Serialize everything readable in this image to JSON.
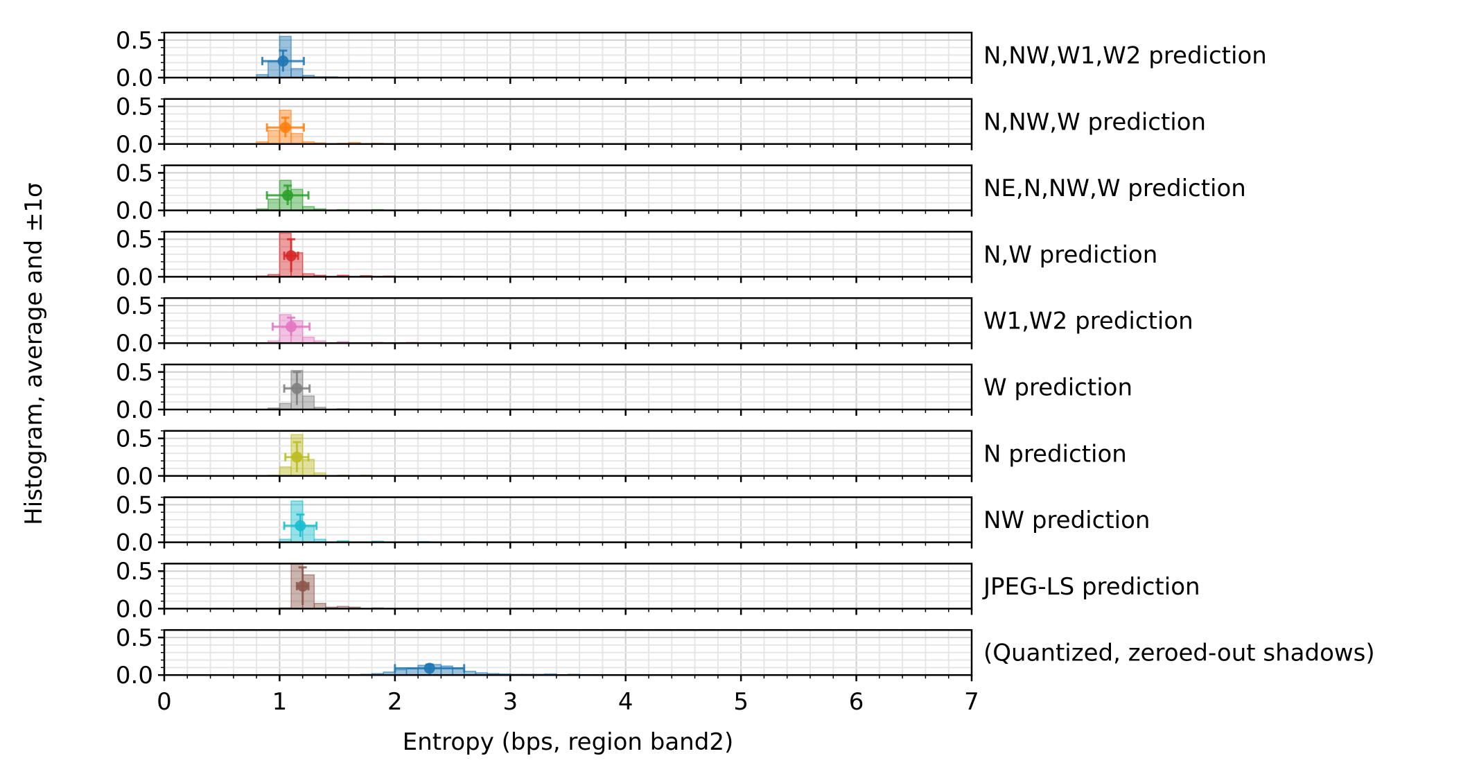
{
  "chart_data": {
    "type": "histogram",
    "xlabel": "Entropy (bps, region band2)",
    "ylabel": "Histogram, average and ±1σ",
    "xlim": [
      0,
      7
    ],
    "ylim": [
      0,
      0.6
    ],
    "x_ticks": [
      "0",
      "1",
      "2",
      "3",
      "4",
      "5",
      "6",
      "7"
    ],
    "y_ticks": [
      "0.0",
      "0.5"
    ],
    "grid": true,
    "bin_width": 0.1,
    "panels": [
      {
        "label": "N,NW,W1,W2 prediction",
        "color": "#1f77b4",
        "mean": 1.03,
        "std": 0.18,
        "marker_y": 0.22,
        "error_y": 0.14,
        "bins": [
          [
            0.8,
            0.04
          ],
          [
            0.9,
            0.22
          ],
          [
            1.0,
            0.55
          ],
          [
            1.1,
            0.12
          ],
          [
            1.2,
            0.03
          ],
          [
            1.3,
            0.01
          ],
          [
            1.4,
            0.01
          ],
          [
            1.6,
            0.005
          ]
        ]
      },
      {
        "label": "N,NW,W prediction",
        "color": "#ff7f0e",
        "mean": 1.05,
        "std": 0.16,
        "marker_y": 0.22,
        "error_y": 0.13,
        "bins": [
          [
            0.8,
            0.03
          ],
          [
            0.9,
            0.18
          ],
          [
            1.0,
            0.45
          ],
          [
            1.1,
            0.14
          ],
          [
            1.2,
            0.03
          ],
          [
            1.3,
            0.015
          ],
          [
            1.5,
            0.01
          ],
          [
            1.6,
            0.02
          ],
          [
            1.8,
            0.01
          ],
          [
            2.0,
            0.005
          ]
        ]
      },
      {
        "label": "NE,N,NW,W prediction",
        "color": "#2ca02c",
        "mean": 1.07,
        "std": 0.18,
        "marker_y": 0.2,
        "error_y": 0.13,
        "bins": [
          [
            0.8,
            0.02
          ],
          [
            0.9,
            0.15
          ],
          [
            1.0,
            0.4
          ],
          [
            1.1,
            0.28
          ],
          [
            1.2,
            0.05
          ],
          [
            1.3,
            0.02
          ],
          [
            1.5,
            0.01
          ],
          [
            1.8,
            0.01
          ],
          [
            2.2,
            0.005
          ],
          [
            2.8,
            0.005
          ]
        ]
      },
      {
        "label": "N,W prediction",
        "color": "#d62728",
        "mean": 1.1,
        "std": 0.06,
        "marker_y": 0.28,
        "error_y": 0.22,
        "bins": [
          [
            0.8,
            0.01
          ],
          [
            0.9,
            0.03
          ],
          [
            1.0,
            0.58
          ],
          [
            1.1,
            0.32
          ],
          [
            1.2,
            0.04
          ],
          [
            1.3,
            0.02
          ],
          [
            1.5,
            0.02
          ],
          [
            1.7,
            0.015
          ],
          [
            1.9,
            0.01
          ],
          [
            2.4,
            0.005
          ]
        ]
      },
      {
        "label": "W1,W2 prediction",
        "color": "#e377c2",
        "mean": 1.1,
        "std": 0.16,
        "marker_y": 0.22,
        "error_y": 0.12,
        "bins": [
          [
            0.9,
            0.03
          ],
          [
            1.0,
            0.38
          ],
          [
            1.1,
            0.3
          ],
          [
            1.2,
            0.08
          ],
          [
            1.3,
            0.03
          ],
          [
            1.5,
            0.02
          ],
          [
            1.8,
            0.01
          ],
          [
            2.1,
            0.01
          ],
          [
            2.4,
            0.005
          ]
        ]
      },
      {
        "label": "W prediction",
        "color": "#7f7f7f",
        "mean": 1.15,
        "std": 0.11,
        "marker_y": 0.28,
        "error_y": 0.22,
        "bins": [
          [
            0.9,
            0.02
          ],
          [
            1.0,
            0.08
          ],
          [
            1.1,
            0.52
          ],
          [
            1.2,
            0.18
          ],
          [
            1.3,
            0.03
          ],
          [
            1.5,
            0.01
          ]
        ]
      },
      {
        "label": "N prediction",
        "color": "#bcbd22",
        "mean": 1.15,
        "std": 0.1,
        "marker_y": 0.25,
        "error_y": 0.2,
        "bins": [
          [
            0.9,
            0.01
          ],
          [
            1.0,
            0.12
          ],
          [
            1.1,
            0.55
          ],
          [
            1.2,
            0.22
          ],
          [
            1.3,
            0.04
          ],
          [
            1.5,
            0.01
          ],
          [
            1.7,
            0.01
          ]
        ]
      },
      {
        "label": "NW prediction",
        "color": "#17becf",
        "mean": 1.18,
        "std": 0.14,
        "marker_y": 0.22,
        "error_y": 0.15,
        "bins": [
          [
            1.0,
            0.04
          ],
          [
            1.1,
            0.55
          ],
          [
            1.2,
            0.22
          ],
          [
            1.3,
            0.04
          ],
          [
            1.5,
            0.02
          ],
          [
            1.8,
            0.015
          ],
          [
            2.2,
            0.01
          ],
          [
            2.6,
            0.005
          ]
        ]
      },
      {
        "label": "JPEG-LS prediction",
        "color": "#8c564b",
        "mean": 1.2,
        "std": 0.05,
        "marker_y": 0.3,
        "error_y": 0.25,
        "bins": [
          [
            1.0,
            0.01
          ],
          [
            1.1,
            0.6
          ],
          [
            1.2,
            0.45
          ],
          [
            1.3,
            0.07
          ],
          [
            1.4,
            0.02
          ],
          [
            1.5,
            0.03
          ],
          [
            1.6,
            0.02
          ],
          [
            1.8,
            0.01
          ]
        ]
      },
      {
        "label": "(Quantized, zeroed-out shadows)",
        "color": "#1f77b4",
        "mean": 2.3,
        "std": 0.3,
        "marker_y": 0.09,
        "error_y": 0.05,
        "bins": [
          [
            1.7,
            0.01
          ],
          [
            1.8,
            0.02
          ],
          [
            1.9,
            0.04
          ],
          [
            2.0,
            0.07
          ],
          [
            2.1,
            0.09
          ],
          [
            2.2,
            0.13
          ],
          [
            2.3,
            0.14
          ],
          [
            2.4,
            0.12
          ],
          [
            2.5,
            0.09
          ],
          [
            2.6,
            0.05
          ],
          [
            2.7,
            0.03
          ],
          [
            2.8,
            0.02
          ],
          [
            2.9,
            0.015
          ],
          [
            3.0,
            0.01
          ],
          [
            3.1,
            0.01
          ],
          [
            3.2,
            0.01
          ],
          [
            3.3,
            0.015
          ],
          [
            3.5,
            0.01
          ],
          [
            3.7,
            0.005
          ]
        ]
      }
    ]
  }
}
